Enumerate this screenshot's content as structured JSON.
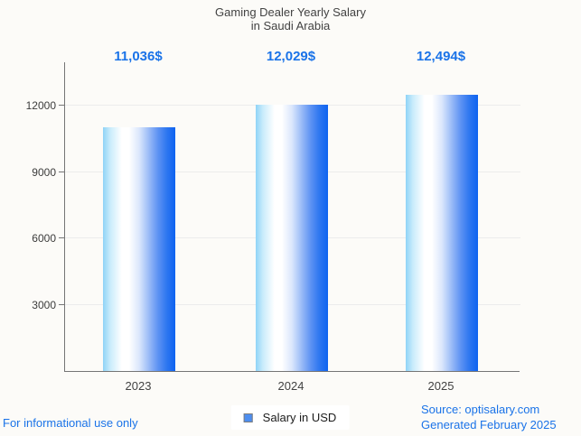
{
  "title": {
    "line1": "Gaming Dealer Yearly Salary",
    "line2": "in Saudi Arabia"
  },
  "chart_data": {
    "type": "bar",
    "title": "Gaming Dealer Yearly Salary in Saudi Arabia",
    "categories": [
      "2023",
      "2024",
      "2025"
    ],
    "series": [
      {
        "name": "Salary in USD",
        "values": [
          11036,
          12029,
          12494
        ]
      }
    ],
    "value_labels": [
      "11,036$",
      "12,029$",
      "12,494$"
    ],
    "y_tick_labels": [
      "3000",
      "6000",
      "9000",
      "12000"
    ],
    "y_ticks": [
      3000,
      6000,
      9000,
      12000
    ],
    "ylim": [
      0,
      14000
    ],
    "xlabel": "",
    "ylabel": "",
    "grid": true,
    "legend_position": "bottom",
    "colors": {
      "value_label_blue": "#1a73e8",
      "bar_gradient_left": "#8fd3f7",
      "bar_gradient_mid": "#ffffff",
      "bar_gradient_right": "#0e63f0",
      "legend_marker": "#4d8ef0",
      "axis_line": "#757575",
      "gridline": "#ececec",
      "title_text": "#424242",
      "background": "#fcfbf8"
    }
  },
  "legend": {
    "label": "Salary in USD"
  },
  "footer": {
    "left": "For informational use only",
    "source": "Source: optisalary.com",
    "generated": "Generated February 2025"
  }
}
